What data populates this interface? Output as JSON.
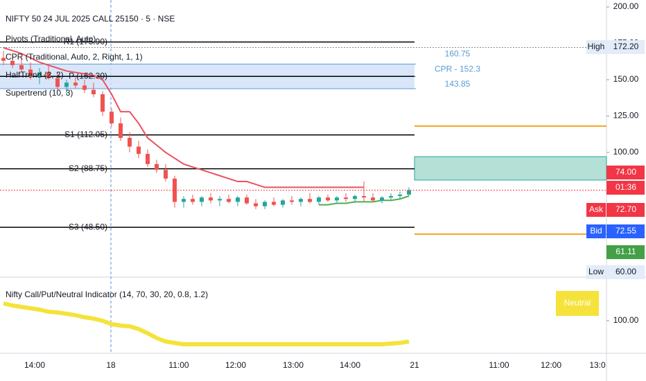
{
  "chart_data": {
    "type": "candlestick",
    "title": "NIFTY 50 24 JUL 2025 CALL 25150 · 5 · NSE",
    "indicators": [
      "Pivots (Traditional, Auto)",
      "CPR (Traditional, Auto, 2, Right, 1, 1)",
      "HalfTrend (2, 2)",
      "Supertrend (10, 3)"
    ],
    "ylim": [
      21.9,
      204.8
    ],
    "yticks": [
      {
        "value": 200,
        "label": "200.00"
      },
      {
        "value": 175,
        "label": "175.00"
      },
      {
        "value": 150,
        "label": "150.00"
      },
      {
        "value": 125,
        "label": "125.00"
      },
      {
        "value": 100,
        "label": "100.00"
      }
    ],
    "x_labels": [
      "14:00",
      "18",
      "11:00",
      "12:00",
      "13:00",
      "14:00",
      "21",
      "11:00",
      "12:00",
      "13:0"
    ],
    "candles": [
      [
        165,
        170,
        160,
        163
      ],
      [
        163,
        168,
        158,
        160
      ],
      [
        160,
        165,
        155,
        157
      ],
      [
        157,
        162,
        150,
        152
      ],
      [
        152,
        158,
        147,
        155
      ],
      [
        155,
        160,
        150,
        151
      ],
      [
        151,
        155,
        142,
        145
      ],
      [
        145,
        150,
        140,
        148
      ],
      [
        148,
        152,
        144,
        146
      ],
      [
        146,
        150,
        141,
        143
      ],
      [
        143,
        148,
        138,
        140
      ],
      [
        140,
        142,
        125,
        128
      ],
      [
        128,
        130,
        118,
        120
      ],
      [
        120,
        124,
        108,
        110
      ],
      [
        110,
        114,
        100,
        104
      ],
      [
        104,
        108,
        96,
        99
      ],
      [
        99,
        102,
        90,
        92
      ],
      [
        92,
        95,
        86,
        88
      ],
      [
        88,
        92,
        80,
        82
      ],
      [
        82,
        84,
        62,
        66
      ],
      [
        66,
        70,
        62,
        68
      ],
      [
        68,
        71,
        64,
        66
      ],
      [
        66,
        70,
        63,
        69
      ],
      [
        69,
        72,
        65,
        67
      ],
      [
        67,
        70,
        63,
        68
      ],
      [
        68,
        71,
        65,
        66
      ],
      [
        66,
        70,
        63,
        69
      ],
      [
        69,
        71,
        64,
        65
      ],
      [
        65,
        68,
        61,
        63
      ],
      [
        63,
        67,
        61,
        66
      ],
      [
        66,
        69,
        63,
        64
      ],
      [
        64,
        68,
        62,
        67
      ],
      [
        67,
        70,
        64,
        66
      ],
      [
        66,
        69,
        63,
        68
      ],
      [
        68,
        72,
        65,
        66
      ],
      [
        66,
        70,
        64,
        69
      ],
      [
        69,
        71,
        66,
        67
      ],
      [
        67,
        70,
        65,
        69
      ],
      [
        69,
        72,
        66,
        68
      ],
      [
        68,
        71,
        66,
        70
      ],
      [
        70,
        80,
        66,
        69
      ],
      [
        69,
        72,
        66,
        67
      ],
      [
        67,
        70,
        65,
        69
      ],
      [
        69,
        72,
        67,
        70
      ],
      [
        70,
        73,
        68,
        71
      ],
      [
        71,
        76,
        70,
        74
      ]
    ],
    "supertrend": {
      "color": "#e8525f",
      "values": [
        172,
        170,
        168,
        165,
        162,
        160,
        158,
        156,
        155,
        154,
        153,
        150,
        140,
        128,
        128,
        120,
        110,
        105,
        100,
        96,
        92,
        90,
        88,
        86,
        84,
        82,
        80,
        80,
        78,
        76,
        76,
        76,
        76,
        76,
        76,
        76,
        76,
        76,
        76,
        76,
        76,
        null,
        null,
        null,
        null,
        null
      ]
    },
    "halftrend": {
      "color": "#4caf50",
      "values": [
        null,
        null,
        null,
        null,
        null,
        null,
        null,
        null,
        null,
        null,
        null,
        null,
        null,
        null,
        null,
        null,
        null,
        null,
        null,
        null,
        null,
        null,
        null,
        null,
        null,
        null,
        null,
        null,
        null,
        null,
        null,
        null,
        null,
        null,
        null,
        64,
        64,
        65,
        65,
        66,
        66,
        66,
        67,
        67,
        68,
        70
      ]
    },
    "pivots": [
      {
        "label": "R1 (175.90)",
        "value": 175.9
      },
      {
        "label": "P (152.30)",
        "value": 152.3
      },
      {
        "label": "S1 (112.05)",
        "value": 112.05
      },
      {
        "label": "S2 (88.75)",
        "value": 88.75
      },
      {
        "label": "S3 (48.50)",
        "value": 48.5
      }
    ],
    "cpr": {
      "top": 160.75,
      "pivot": 152.3,
      "bottom": 143.85,
      "labels": [
        "160.75",
        "CPR - 152.3",
        "143.85"
      ],
      "color": "#5b9bd5"
    },
    "orange_levels": [
      118.1,
      43.8
    ],
    "teal_zone": [
      97.1,
      81.0
    ],
    "price_tags": [
      {
        "text": "High",
        "value": 172.2,
        "label": "172.20"
      },
      {
        "value": 74,
        "label": "74.00"
      },
      {
        "text": "Ask",
        "value": 72.7,
        "label": "72.70"
      },
      {
        "text": "Bid",
        "value": 72.55,
        "label": "72.55"
      },
      {
        "value": 61.11,
        "label": "61.11"
      },
      {
        "text": "Low",
        "value": 60,
        "label": "60.00"
      }
    ],
    "countdown": "01:36",
    "oscillator": {
      "title": "Nifty Call/Put/Neutral Indicator (14, 70, 30, 20, 0.8, 1.2)",
      "signal": "Neutral",
      "color": "#f5e23b",
      "ylim": [
        53,
        158
      ],
      "yticks": [
        {
          "value": 100,
          "label": "100.00"
        }
      ],
      "values": [
        125,
        122,
        120,
        118,
        116,
        113,
        112,
        110,
        108,
        105,
        103,
        100,
        95,
        93,
        92,
        88,
        82,
        75,
        70,
        68,
        66,
        66,
        66,
        66,
        66,
        66,
        66,
        66,
        66,
        66,
        66,
        66,
        66,
        66,
        66,
        66,
        66,
        66,
        66,
        66,
        66,
        66,
        66,
        67,
        68,
        70
      ]
    }
  }
}
